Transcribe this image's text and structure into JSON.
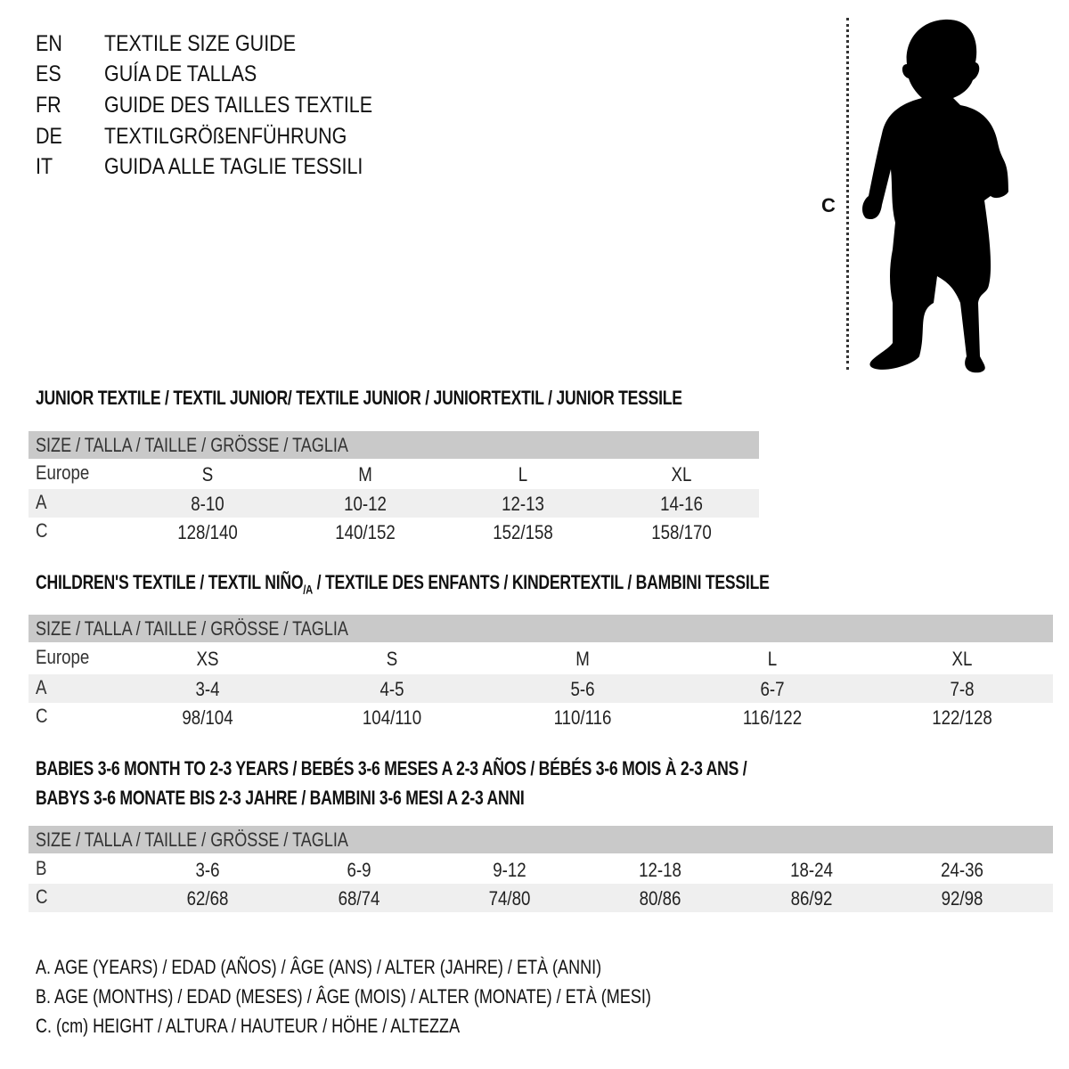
{
  "titles": [
    {
      "code": "EN",
      "text": "TEXTILE SIZE GUIDE"
    },
    {
      "code": "ES",
      "text": "GUÍA DE TALLAS"
    },
    {
      "code": "FR",
      "text": "GUIDE DES TAILLES TEXTILE"
    },
    {
      "code": "DE",
      "text": "TEXTILGRÖßENFÜHRUNG"
    },
    {
      "code": "IT",
      "text": "GUIDA ALLE TAGLIE TESSILI"
    }
  ],
  "figure": {
    "measure_label": "C",
    "icon": "child-silhouette"
  },
  "junior": {
    "heading": "JUNIOR TEXTILE / TEXTIL JUNIOR/ TEXTILE JUNIOR / JUNIORTEXTIL / JUNIOR TESSILE",
    "size_header": "SIZE / TALLA / TAILLE / GRÖSSE / TAGLIA",
    "rows": [
      {
        "label": "Europe",
        "values": [
          "S",
          "M",
          "L",
          "XL"
        ]
      },
      {
        "label": "A",
        "values": [
          "8-10",
          "10-12",
          "12-13",
          "14-16"
        ]
      },
      {
        "label": "C",
        "values": [
          "128/140",
          "140/152",
          "152/158",
          "158/170"
        ]
      }
    ]
  },
  "children": {
    "heading_main": "CHILDREN'S TEXTILE / TEXTIL NIÑO",
    "heading_sub": "/A",
    "heading_rest": " / TEXTILE DES ENFANTS / KINDERTEXTIL / BAMBINI TESSILE",
    "size_header": "SIZE / TALLA / TAILLE / GRÖSSE / TAGLIA",
    "rows": [
      {
        "label": "Europe",
        "values": [
          "XS",
          "S",
          "M",
          "L",
          "XL"
        ]
      },
      {
        "label": "A",
        "values": [
          "3-4",
          "4-5",
          "5-6",
          "6-7",
          "7-8"
        ]
      },
      {
        "label": "C",
        "values": [
          "98/104",
          "104/110",
          "110/116",
          "116/122",
          "122/128"
        ]
      }
    ]
  },
  "babies": {
    "heading_line1": "BABIES 3-6 MONTH TO 2-3 YEARS / BEBÉS 3-6 MESES A 2-3 AÑOS / BÉBÉS 3-6 MOIS À 2-3 ANS /",
    "heading_line2": "BABYS 3-6 MONATE BIS 2-3 JAHRE / BAMBINI 3-6 MESI A 2-3 ANNI",
    "size_header": "SIZE / TALLA / TAILLE / GRÖSSE / TAGLIA",
    "rows": [
      {
        "label": "B",
        "values": [
          "3-6",
          "6-9",
          "9-12",
          "12-18",
          "18-24",
          "24-36"
        ]
      },
      {
        "label": "C",
        "values": [
          "62/68",
          "68/74",
          "74/80",
          "80/86",
          "86/92",
          "92/98"
        ]
      }
    ]
  },
  "legend": [
    "A. AGE (YEARS) / EDAD (AÑOS) / ÂGE (ANS) / ALTER (JAHRE) / ETÀ (ANNI)",
    "B. AGE (MONTHS) / EDAD (MESES) / ÂGE (MOIS) / ALTER (MONATE) / ETÀ (MESI)",
    "C. (cm) HEIGHT / ALTURA / HAUTEUR / HÖHE / ALTEZZA"
  ],
  "colors": {
    "header_band": "#c9c9c9",
    "row_shade": "#efefef"
  }
}
